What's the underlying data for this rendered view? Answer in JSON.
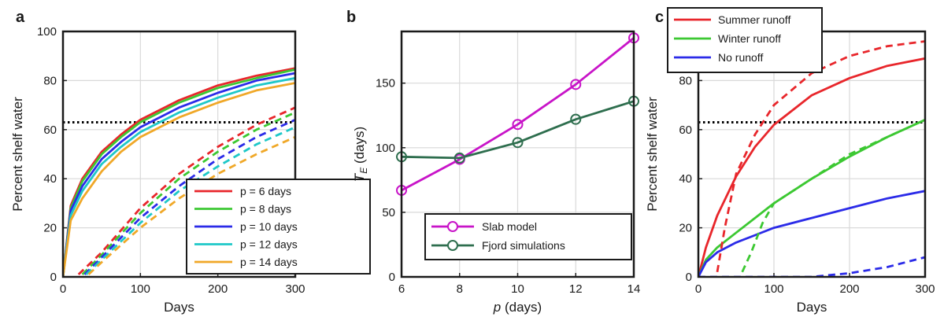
{
  "chart_data": [
    {
      "panel_label": "a",
      "type": "line",
      "xlabel": "Days",
      "ylabel": "Percent shelf water",
      "xlim": [
        0,
        300
      ],
      "ylim": [
        0,
        100
      ],
      "xticks": [
        0,
        100,
        200,
        300
      ],
      "yticks": [
        0,
        20,
        40,
        60,
        80,
        100
      ],
      "grid": true,
      "legend_position": "bottom-right",
      "reference_line": {
        "y": 63,
        "style": "dotted",
        "color": "#000000"
      },
      "series": [
        {
          "name": "p = 6 days",
          "color": "#e8262b",
          "style": "solid",
          "x": [
            0,
            10,
            25,
            50,
            75,
            100,
            150,
            200,
            250,
            300
          ],
          "y": [
            0,
            29,
            40,
            51,
            58,
            64,
            72,
            78,
            82,
            85
          ]
        },
        {
          "name": "p = 8 days",
          "color": "#3cc832",
          "style": "solid",
          "x": [
            0,
            10,
            25,
            50,
            75,
            100,
            150,
            200,
            250,
            300
          ],
          "y": [
            0,
            28,
            39,
            50,
            57,
            63,
            71,
            77,
            81,
            84.5
          ]
        },
        {
          "name": "p = 10 days",
          "color": "#2b2be8",
          "style": "solid",
          "x": [
            0,
            10,
            25,
            50,
            75,
            100,
            150,
            200,
            250,
            300
          ],
          "y": [
            0,
            27,
            37,
            48,
            55,
            61,
            69,
            75,
            80,
            83
          ]
        },
        {
          "name": "p = 12 days",
          "color": "#1ec8c8",
          "style": "solid",
          "x": [
            0,
            10,
            25,
            50,
            75,
            100,
            150,
            200,
            250,
            300
          ],
          "y": [
            0,
            25,
            35,
            46,
            53,
            59,
            67,
            73,
            78,
            81
          ]
        },
        {
          "name": "p = 14 days",
          "color": "#f0a828",
          "style": "solid",
          "x": [
            0,
            10,
            25,
            50,
            75,
            100,
            150,
            200,
            250,
            300
          ],
          "y": [
            0,
            23,
            32,
            43,
            51,
            57,
            65,
            71,
            76,
            79
          ]
        },
        {
          "name": "p = 6 days",
          "color": "#e8262b",
          "style": "dashed",
          "x": [
            20,
            50,
            100,
            150,
            200,
            250,
            300
          ],
          "y": [
            1,
            10,
            28,
            42,
            53,
            62,
            69
          ]
        },
        {
          "name": "p = 8 days",
          "color": "#3cc832",
          "style": "dashed",
          "x": [
            25,
            50,
            100,
            150,
            200,
            250,
            300
          ],
          "y": [
            1,
            9,
            26,
            40,
            51,
            60,
            67
          ]
        },
        {
          "name": "p = 10 days",
          "color": "#2b2be8",
          "style": "dashed",
          "x": [
            28,
            50,
            100,
            150,
            200,
            250,
            300
          ],
          "y": [
            1,
            8,
            24,
            37,
            48,
            57,
            64
          ]
        },
        {
          "name": "p = 12 days",
          "color": "#1ec8c8",
          "style": "dashed",
          "x": [
            30,
            50,
            100,
            150,
            200,
            250,
            300
          ],
          "y": [
            1,
            7,
            22,
            35,
            45,
            54,
            61
          ]
        },
        {
          "name": "p = 14 days",
          "color": "#f0a828",
          "style": "dashed",
          "x": [
            33,
            50,
            100,
            150,
            200,
            250,
            300
          ],
          "y": [
            1,
            6,
            20,
            32,
            42,
            50,
            57
          ]
        }
      ]
    },
    {
      "panel_label": "b",
      "type": "line",
      "xlabel": "p (days)",
      "ylabel": "T_E (days)",
      "xlim": [
        6,
        14
      ],
      "ylim": [
        0,
        190
      ],
      "xticks": [
        6,
        8,
        10,
        12,
        14
      ],
      "yticks": [
        0,
        50,
        100,
        150
      ],
      "grid": true,
      "legend_position": "bottom-center",
      "series": [
        {
          "name": "Slab model",
          "color": "#c814c8",
          "marker": "circle",
          "x": [
            6,
            8,
            10,
            12,
            14
          ],
          "y": [
            67,
            91,
            118,
            149,
            185
          ]
        },
        {
          "name": "Fjord simulations",
          "color": "#2e6e4e",
          "marker": "circle",
          "x": [
            6,
            8,
            10,
            12,
            14
          ],
          "y": [
            93,
            92,
            104,
            122,
            136
          ]
        }
      ]
    },
    {
      "panel_label": "c",
      "type": "line",
      "xlabel": "Days",
      "ylabel": "Percent shelf water",
      "xlim": [
        0,
        300
      ],
      "ylim": [
        0,
        100
      ],
      "xticks": [
        0,
        100,
        200,
        300
      ],
      "yticks": [
        0,
        20,
        40,
        60,
        80
      ],
      "grid": true,
      "legend_position": "top-left",
      "reference_line": {
        "y": 63,
        "style": "dotted",
        "color": "#000000"
      },
      "series": [
        {
          "name": "Summer runoff",
          "color": "#e8262b",
          "style": "solid",
          "x": [
            0,
            10,
            25,
            50,
            75,
            100,
            150,
            200,
            250,
            300
          ],
          "y": [
            0,
            12,
            25,
            41,
            53,
            62,
            74,
            81,
            86,
            89
          ]
        },
        {
          "name": "Winter runoff",
          "color": "#3cc832",
          "style": "solid",
          "x": [
            0,
            10,
            25,
            50,
            75,
            100,
            150,
            200,
            250,
            300
          ],
          "y": [
            0,
            7,
            12,
            18,
            24,
            30,
            40,
            49,
            57,
            64
          ]
        },
        {
          "name": "No runoff",
          "color": "#2b2be8",
          "style": "solid",
          "x": [
            0,
            10,
            25,
            50,
            75,
            100,
            150,
            200,
            250,
            300
          ],
          "y": [
            0,
            6,
            10,
            14,
            17,
            20,
            24,
            28,
            32,
            35
          ]
        },
        {
          "name": "Summer runoff",
          "color": "#e8262b",
          "style": "dashed",
          "x": [
            25,
            35,
            50,
            75,
            100,
            150,
            200,
            250,
            300
          ],
          "y": [
            2,
            20,
            42,
            58,
            70,
            83,
            90,
            94,
            96
          ]
        },
        {
          "name": "Winter runoff",
          "color": "#3cc832",
          "style": "dashed",
          "x": [
            58,
            70,
            85,
            100,
            150,
            200,
            250,
            300
          ],
          "y": [
            2,
            10,
            22,
            30,
            40,
            50,
            57,
            64
          ]
        },
        {
          "name": "No runoff",
          "color": "#2b2be8",
          "style": "dashed",
          "x": [
            0,
            150,
            200,
            250,
            300
          ],
          "y": [
            0,
            0,
            1.5,
            4,
            8
          ]
        }
      ]
    }
  ]
}
